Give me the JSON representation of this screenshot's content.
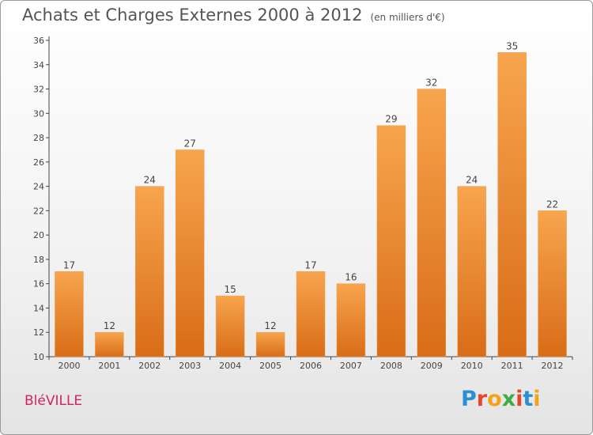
{
  "title": "Achats et Charges Externes 2000 à 2012",
  "unit": "(en milliers d'€)",
  "commune": "BléVILLE",
  "logo": {
    "text": "Proxiti",
    "letters": [
      "P",
      "r",
      "o",
      "x",
      "i",
      "t",
      "i"
    ]
  },
  "colors": {
    "bar_top": "#f7a54e",
    "bar_bottom": "#d96c17",
    "commune": "#d4245c",
    "logo": [
      "#2a8fd6",
      "#e8432d",
      "#f2a31b",
      "#3bae48",
      "#e8432d",
      "#2a8fd6",
      "#f2a31b"
    ]
  },
  "chart_data": {
    "type": "bar",
    "categories": [
      "2000",
      "2001",
      "2002",
      "2003",
      "2004",
      "2005",
      "2006",
      "2007",
      "2008",
      "2009",
      "2010",
      "2011",
      "2012"
    ],
    "values": [
      17,
      12,
      24,
      27,
      15,
      12,
      17,
      16,
      29,
      32,
      24,
      35,
      22
    ],
    "ylim": [
      10,
      36
    ],
    "yticks": [
      10,
      12,
      14,
      16,
      18,
      20,
      22,
      24,
      26,
      28,
      30,
      32,
      34,
      36
    ],
    "grid": false,
    "data_labels": true
  }
}
